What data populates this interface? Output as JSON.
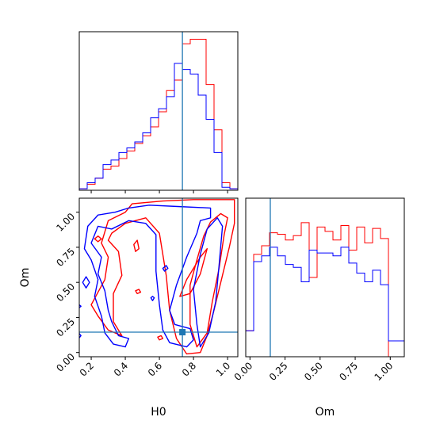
{
  "chart_data": {
    "type": "corner",
    "parameters": [
      "H0",
      "Om"
    ],
    "xlabel_h0": "H0",
    "xlabel_om": "Om",
    "ylabel_om": "Om",
    "truth": {
      "H0": 0.735,
      "Om": 0.145
    },
    "truth_color": "#1f77b4",
    "colors": {
      "red": "#ff0000",
      "blue": "#0000ff"
    },
    "h0_axis": {
      "range": [
        0.13,
        1.06
      ],
      "ticks": [
        0.2,
        0.4,
        0.6,
        0.8,
        1.0
      ],
      "tick_labels": [
        "0.2",
        "0.4",
        "0.6",
        "0.8",
        "1.0"
      ]
    },
    "om_axis": {
      "range": [
        -0.03,
        1.1
      ],
      "ticks": [
        0.0,
        0.25,
        0.5,
        0.75,
        1.0
      ],
      "tick_labels": [
        "0.00",
        "0.25",
        "0.50",
        "0.75",
        "1.00"
      ]
    },
    "h0_hist": {
      "bin_edges": [
        0.13,
        0.1765,
        0.223,
        0.2695,
        0.316,
        0.3625,
        0.409,
        0.4555,
        0.502,
        0.5485,
        0.595,
        0.6415,
        0.688,
        0.7345,
        0.781,
        0.8275,
        0.874,
        0.9205,
        0.967,
        1.0135,
        1.06
      ],
      "ymax": 1.05,
      "series": [
        {
          "color": "red",
          "values": [
            0.01,
            0.04,
            0.08,
            0.14,
            0.16,
            0.21,
            0.26,
            0.31,
            0.36,
            0.42,
            0.52,
            0.66,
            0.73,
            0.97,
            1.0,
            1.0,
            0.7,
            0.4,
            0.05,
            0.01
          ]
        },
        {
          "color": "blue",
          "values": [
            0.01,
            0.05,
            0.08,
            0.17,
            0.2,
            0.25,
            0.28,
            0.32,
            0.38,
            0.48,
            0.54,
            0.62,
            0.84,
            0.8,
            0.77,
            0.63,
            0.47,
            0.25,
            0.02,
            0.01
          ]
        }
      ]
    },
    "om_hist": {
      "bin_edges": [
        -0.03,
        0.0265,
        0.083,
        0.1395,
        0.196,
        0.2525,
        0.309,
        0.3655,
        0.422,
        0.4785,
        0.535,
        0.5915,
        0.648,
        0.7045,
        0.761,
        0.8175,
        0.874,
        0.9305,
        0.987,
        1.0435,
        1.1
      ],
      "ymax": 1.0,
      "series": [
        {
          "color": "red",
          "values": [
            0.18,
            0.71,
            0.77,
            0.86,
            0.85,
            0.81,
            0.84,
            0.93,
            0.55,
            0.9,
            0.87,
            0.81,
            0.91,
            0.74,
            0.9,
            0.79,
            0.89,
            0.82,
            0.0,
            0.0
          ]
        },
        {
          "color": "blue",
          "values": [
            0.18,
            0.66,
            0.7,
            0.76,
            0.7,
            0.64,
            0.62,
            0.52,
            0.74,
            0.72,
            0.72,
            0.7,
            0.76,
            0.65,
            0.58,
            0.52,
            0.6,
            0.5,
            0.11,
            0.11
          ]
        }
      ]
    },
    "contours": [
      {
        "color": "red",
        "points": [
          [
            0.4,
            1.0
          ],
          [
            0.44,
            1.06
          ],
          [
            0.62,
            1.08
          ],
          [
            0.8,
            1.09
          ],
          [
            1.04,
            1.09
          ],
          [
            1.04,
            0.92
          ],
          [
            1.01,
            0.75
          ],
          [
            0.97,
            0.55
          ],
          [
            0.92,
            0.3
          ],
          [
            0.88,
            0.12
          ],
          [
            0.84,
            0.0
          ],
          [
            0.76,
            -0.01
          ],
          [
            0.7,
            0.1
          ],
          [
            0.66,
            0.3
          ],
          [
            0.64,
            0.55
          ],
          [
            0.6,
            0.85
          ],
          [
            0.52,
            0.96
          ],
          [
            0.4,
            0.92
          ],
          [
            0.32,
            0.85
          ],
          [
            0.3,
            0.8
          ],
          [
            0.36,
            0.72
          ],
          [
            0.38,
            0.55
          ],
          [
            0.33,
            0.42
          ],
          [
            0.33,
            0.22
          ],
          [
            0.38,
            0.12
          ],
          [
            0.3,
            0.16
          ],
          [
            0.24,
            0.26
          ],
          [
            0.2,
            0.34
          ],
          [
            0.28,
            0.52
          ],
          [
            0.3,
            0.68
          ],
          [
            0.26,
            0.78
          ],
          [
            0.3,
            0.94
          ],
          [
            0.4,
            1.0
          ]
        ]
      },
      {
        "color": "red",
        "points": [
          [
            0.78,
            0.48
          ],
          [
            0.82,
            0.66
          ],
          [
            0.86,
            0.83
          ],
          [
            0.9,
            0.93
          ],
          [
            0.96,
            0.99
          ],
          [
            1.0,
            0.96
          ],
          [
            0.98,
            0.84
          ],
          [
            0.95,
            0.6
          ],
          [
            0.91,
            0.36
          ],
          [
            0.88,
            0.14
          ],
          [
            0.82,
            0.04
          ],
          [
            0.78,
            0.2
          ],
          [
            0.78,
            0.48
          ]
        ]
      },
      {
        "color": "red",
        "points": [
          [
            0.72,
            0.4
          ],
          [
            0.76,
            0.52
          ],
          [
            0.84,
            0.68
          ],
          [
            0.88,
            0.74
          ],
          [
            0.84,
            0.56
          ],
          [
            0.78,
            0.42
          ],
          [
            0.72,
            0.4
          ]
        ]
      },
      {
        "color": "red",
        "points": [
          [
            0.24,
            0.83
          ],
          [
            0.26,
            0.81
          ],
          [
            0.24,
            0.79
          ],
          [
            0.22,
            0.81
          ],
          [
            0.24,
            0.83
          ]
        ]
      },
      {
        "color": "red",
        "points": [
          [
            0.47,
            0.8
          ],
          [
            0.48,
            0.74
          ],
          [
            0.46,
            0.72
          ],
          [
            0.45,
            0.77
          ],
          [
            0.47,
            0.8
          ]
        ]
      },
      {
        "color": "red",
        "points": [
          [
            0.48,
            0.45
          ],
          [
            0.49,
            0.43
          ],
          [
            0.47,
            0.42
          ],
          [
            0.46,
            0.44
          ],
          [
            0.48,
            0.45
          ]
        ]
      },
      {
        "color": "red",
        "points": [
          [
            0.61,
            0.12
          ],
          [
            0.62,
            0.1
          ],
          [
            0.6,
            0.09
          ],
          [
            0.59,
            0.11
          ],
          [
            0.61,
            0.12
          ]
        ]
      },
      {
        "color": "blue",
        "points": [
          [
            0.42,
            1.03
          ],
          [
            0.54,
            1.05
          ],
          [
            0.72,
            1.04
          ],
          [
            0.9,
            1.03
          ],
          [
            0.9,
            0.96
          ],
          [
            0.84,
            0.94
          ],
          [
            0.82,
            0.85
          ],
          [
            0.76,
            0.68
          ],
          [
            0.7,
            0.48
          ],
          [
            0.66,
            0.3
          ],
          [
            0.69,
            0.2
          ],
          [
            0.78,
            0.17
          ],
          [
            0.8,
            0.09
          ],
          [
            0.76,
            0.04
          ],
          [
            0.66,
            0.07
          ],
          [
            0.62,
            0.16
          ],
          [
            0.6,
            0.34
          ],
          [
            0.58,
            0.58
          ],
          [
            0.58,
            0.84
          ],
          [
            0.52,
            0.92
          ],
          [
            0.42,
            0.94
          ],
          [
            0.32,
            0.88
          ],
          [
            0.24,
            0.9
          ],
          [
            0.2,
            0.78
          ],
          [
            0.26,
            0.68
          ],
          [
            0.24,
            0.56
          ],
          [
            0.28,
            0.44
          ],
          [
            0.3,
            0.3
          ],
          [
            0.32,
            0.22
          ],
          [
            0.36,
            0.12
          ],
          [
            0.42,
            0.1
          ],
          [
            0.4,
            0.04
          ],
          [
            0.33,
            0.06
          ],
          [
            0.28,
            0.14
          ],
          [
            0.26,
            0.26
          ],
          [
            0.22,
            0.4
          ],
          [
            0.24,
            0.52
          ],
          [
            0.2,
            0.66
          ],
          [
            0.16,
            0.74
          ],
          [
            0.18,
            0.9
          ],
          [
            0.24,
            0.98
          ],
          [
            0.34,
            1.0
          ],
          [
            0.42,
            1.03
          ]
        ]
      },
      {
        "color": "blue",
        "points": [
          [
            0.8,
            0.45
          ],
          [
            0.84,
            0.7
          ],
          [
            0.88,
            0.88
          ],
          [
            0.94,
            0.96
          ],
          [
            0.97,
            0.9
          ],
          [
            0.95,
            0.62
          ],
          [
            0.93,
            0.36
          ],
          [
            0.89,
            0.14
          ],
          [
            0.84,
            0.04
          ],
          [
            0.82,
            0.2
          ],
          [
            0.8,
            0.45
          ]
        ]
      },
      {
        "color": "blue",
        "points": [
          [
            0.64,
            0.62
          ],
          [
            0.65,
            0.6
          ],
          [
            0.63,
            0.58
          ],
          [
            0.62,
            0.6
          ],
          [
            0.64,
            0.62
          ]
        ]
      },
      {
        "color": "blue",
        "points": [
          [
            0.17,
            0.54
          ],
          [
            0.19,
            0.5
          ],
          [
            0.17,
            0.46
          ],
          [
            0.15,
            0.5
          ],
          [
            0.17,
            0.54
          ]
        ]
      },
      {
        "color": "blue",
        "points": [
          [
            0.12,
            0.35
          ],
          [
            0.14,
            0.33
          ],
          [
            0.12,
            0.31
          ],
          [
            0.1,
            0.33
          ],
          [
            0.12,
            0.35
          ]
        ]
      },
      {
        "color": "blue",
        "points": [
          [
            0.12,
            0.15
          ],
          [
            0.14,
            0.12
          ],
          [
            0.12,
            0.09
          ],
          [
            0.1,
            0.12
          ],
          [
            0.12,
            0.15
          ]
        ]
      },
      {
        "color": "blue",
        "points": [
          [
            0.56,
            0.4
          ],
          [
            0.57,
            0.39
          ],
          [
            0.56,
            0.37
          ],
          [
            0.55,
            0.39
          ],
          [
            0.56,
            0.4
          ]
        ]
      }
    ]
  }
}
